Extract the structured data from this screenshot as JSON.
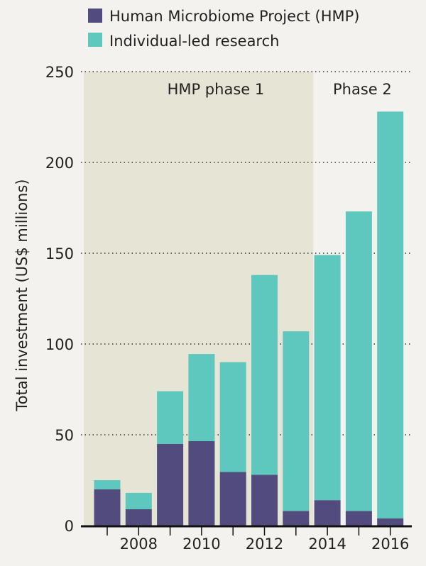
{
  "chart_data": {
    "type": "bar",
    "stacked": true,
    "categories": [
      "2007",
      "2008",
      "2009",
      "2010",
      "2011",
      "2012",
      "2013",
      "2014",
      "2015",
      "2016"
    ],
    "x_tick_labels": [
      "2008",
      "2010",
      "2012",
      "2014",
      "2016"
    ],
    "series": [
      {
        "name": "Human Microbiome Project (HMP)",
        "color": "#524b7e",
        "values": [
          20,
          9,
          45,
          46.5,
          29.5,
          28,
          8,
          14,
          8,
          4
        ]
      },
      {
        "name": "Individual-led research",
        "color": "#5ec8be",
        "values": [
          5,
          9,
          29,
          48,
          60.5,
          110,
          99,
          135,
          165,
          224
        ]
      }
    ],
    "ylabel": "Total investment (US$ millions)",
    "xlabel": "",
    "ylim": [
      0,
      250
    ],
    "yticks": [
      0,
      50,
      100,
      150,
      200,
      250
    ],
    "grid": "horizontal dotted",
    "legend_position": "top-left",
    "annotations": [
      {
        "text": "HMP phase 1",
        "years": [
          "2007",
          "2013"
        ],
        "shade_color": "#e6e4d4"
      },
      {
        "text": "Phase 2",
        "years": [
          "2014",
          "2016"
        ]
      }
    ]
  }
}
